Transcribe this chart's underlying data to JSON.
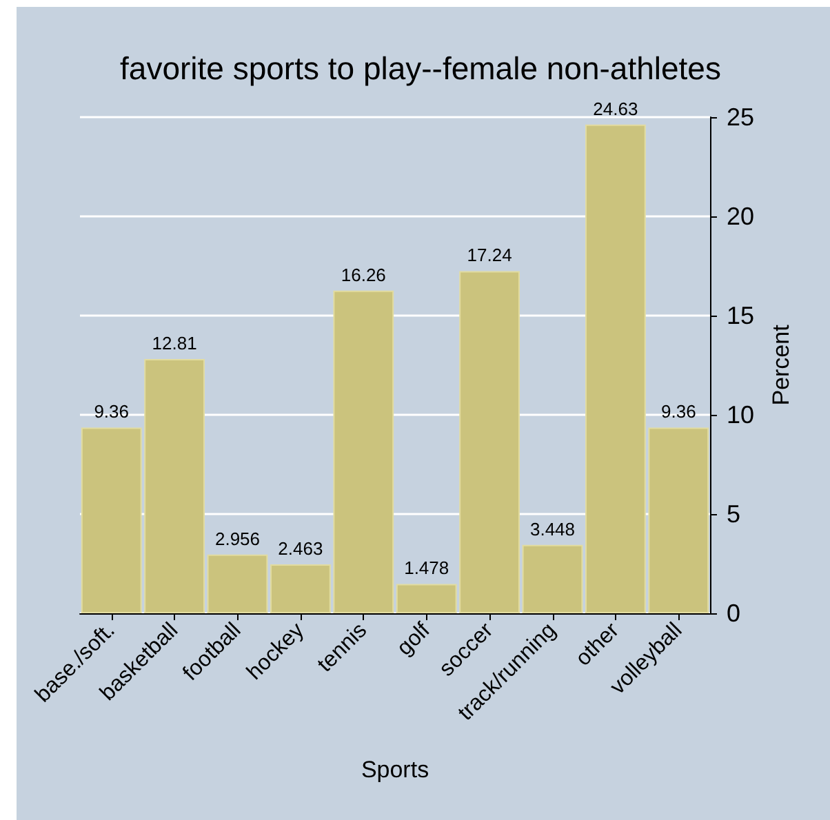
{
  "chart_data": {
    "type": "bar",
    "title": "favorite sports to play--female non-athletes",
    "xlabel": "Sports",
    "ylabel": "Percent",
    "categories": [
      "base./soft.",
      "basketball",
      "football",
      "hockey",
      "tennis",
      "golf",
      "soccer",
      "track/running",
      "other",
      "volleyball"
    ],
    "values": [
      9.36,
      12.81,
      2.956,
      2.463,
      16.26,
      1.478,
      17.24,
      3.448,
      24.63,
      9.36
    ],
    "color": "#cbc37d",
    "ylim": [
      0,
      25
    ],
    "yticks": [
      0,
      5,
      10,
      15,
      20,
      25
    ],
    "grid": "y",
    "data_labels": true
  }
}
